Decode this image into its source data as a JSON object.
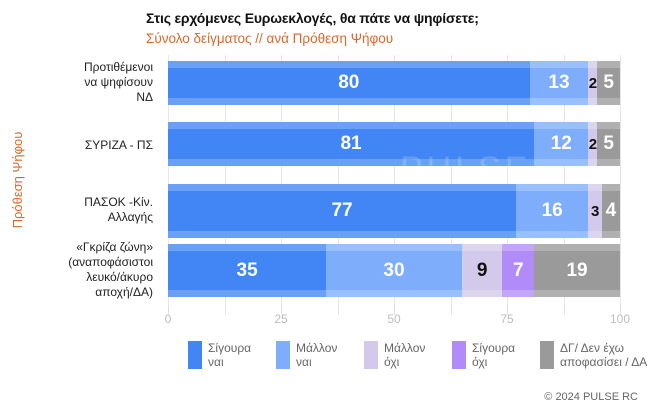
{
  "title": "Στις ερχόμενες Ευρωεκλογές, θα πάτε να ψηφίσετε;",
  "subtitle": "Σύνολο δείγματος // ανά Πρόθεση Ψήφου",
  "y_axis_title": "Πρόθεση Ψήφου",
  "watermark": "PULSE",
  "copyright": "© 2024 PULSE RC",
  "chart_data": {
    "type": "bar",
    "orientation": "horizontal",
    "stacked": true,
    "title": "Στις ερχόμενες Ευρωεκλογές, θα πάτε να ψηφίσετε;",
    "subtitle": "Σύνολο δείγματος // ανά Πρόθεση Ψήφου",
    "xlabel": "",
    "ylabel": "Πρόθεση Ψήφου",
    "xlim": [
      0,
      100
    ],
    "x_ticks": [
      "0",
      "25",
      "50",
      "75",
      "100"
    ],
    "grid": true,
    "legend_position": "bottom",
    "categories": [
      "Προτιθέμενοι να ψηφίσουν ΝΔ",
      "ΣΥΡΙΖΑ - ΠΣ",
      "ΠΑΣΟΚ -Κίν. Αλλαγής",
      "«Γκρίζα ζώνη» (αναποφάσιστοι λευκό/άκυρο αποχή/ΔΑ)"
    ],
    "series": [
      {
        "name": "Σίγουρα ναι",
        "color": "#4286f5",
        "label_color": "#ffffff",
        "values": [
          80,
          81,
          77,
          35
        ]
      },
      {
        "name": "Μάλλον ναι",
        "color": "#7dadfb",
        "label_color": "#ffffff",
        "values": [
          13,
          12,
          16,
          30
        ]
      },
      {
        "name": "Μάλλον όχι",
        "color": "#d3c9ea",
        "label_color": "#111111",
        "values": [
          2,
          2,
          3,
          9
        ]
      },
      {
        "name": "Σίγουρα όχι",
        "color": "#b18cf8",
        "label_color": "#ffffff",
        "values": [
          0,
          0,
          0,
          7
        ]
      },
      {
        "name": "ΔΓ/ Δεν έχω αποφασίσει / ΔΑ",
        "color": "#9a9a9a",
        "label_color": "#ffffff",
        "values": [
          5,
          5,
          4,
          19
        ]
      }
    ]
  },
  "categories_display": [
    "Προτιθέμενοι\nνα ψηφίσουν\nΝΔ",
    "ΣΥΡΙΖΑ - ΠΣ",
    "ΠΑΣΟΚ -Κίν.\nΑλλαγής",
    "«Γκρίζα ζώνη»\n(αναποφάσιστοι\nλευκό/άκυρο\nαποχή/ΔΑ)"
  ],
  "legend": [
    {
      "label": "Σίγουρα\nναι",
      "color": "#4286f5"
    },
    {
      "label": "Μάλλον\nναι",
      "color": "#7dadfb"
    },
    {
      "label": "Μάλλον\nόχι",
      "color": "#d3c9ea"
    },
    {
      "label": "Σίγουρα\nόχι",
      "color": "#b18cf8"
    },
    {
      "label": "ΔΓ/ Δεν έχω\nαποφασίσει / ΔΑ",
      "color": "#9a9a9a"
    }
  ]
}
